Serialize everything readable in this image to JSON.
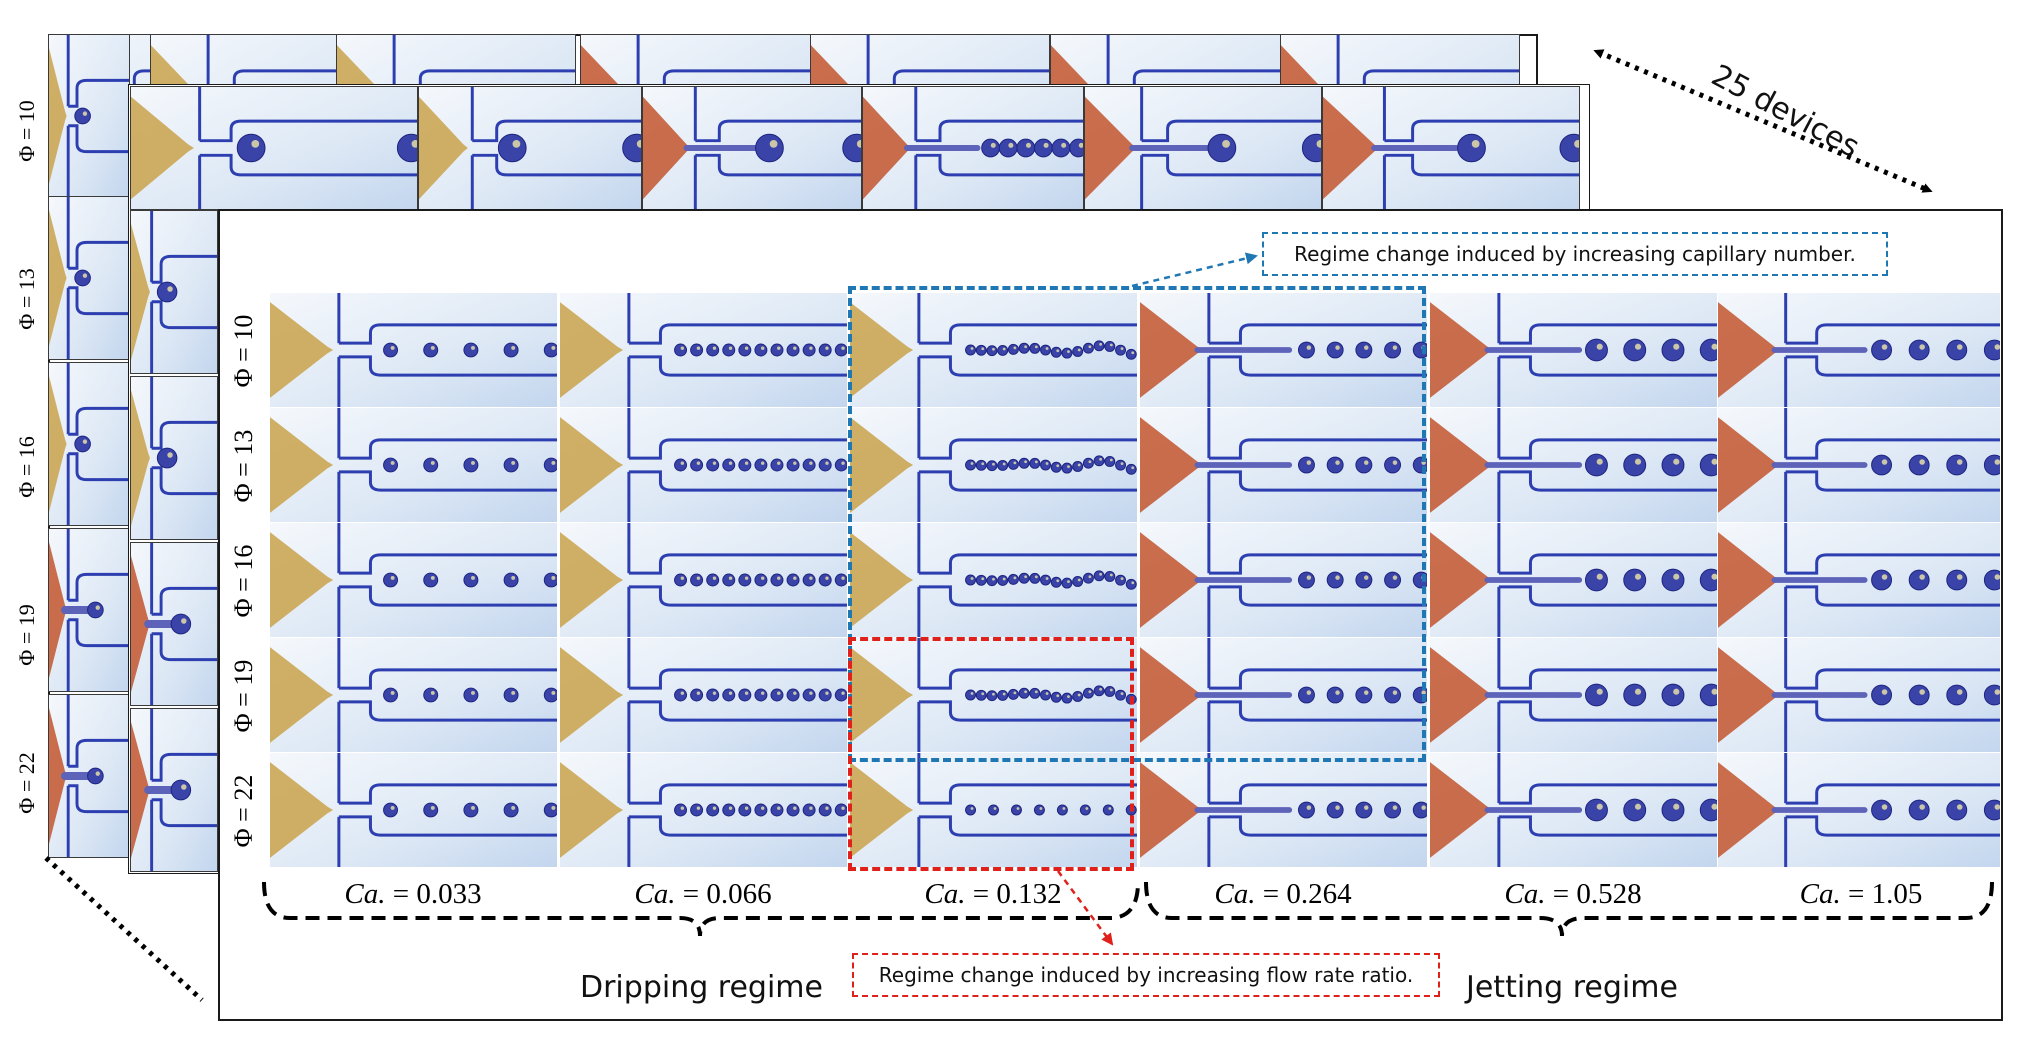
{
  "devices_label": "25 devices",
  "phi_labels": [
    "Φ = 10",
    "Φ = 13",
    "Φ = 16",
    "Φ = 19",
    "Φ = 22"
  ],
  "ca_labels": [
    {
      "symbol": "Ca.",
      "value": "= 0.033"
    },
    {
      "symbol": "Ca.",
      "value": "= 0.066"
    },
    {
      "symbol": "Ca.",
      "value": "= 0.132"
    },
    {
      "symbol": "Ca.",
      "value": "= 0.264"
    },
    {
      "symbol": "Ca.",
      "value": "= 0.528"
    },
    {
      "symbol": "Ca.",
      "value": "= 1.05"
    }
  ],
  "regimes": {
    "dripping": "Dripping regime",
    "jetting": "Jetting regime"
  },
  "callouts": {
    "capillary": "Regime change induced by increasing capillary number.",
    "flow_rate": "Regime change induced by increasing flow rate ratio."
  },
  "colors": {
    "capillary_highlight": "#1f77b4",
    "flow_rate_highlight": "#e0201b",
    "channel": "#2d3fb0",
    "droplet": "#3a44a8",
    "dispersed_dripping": "#c9a24a",
    "dispersed_jetting": "#c2552e"
  }
}
